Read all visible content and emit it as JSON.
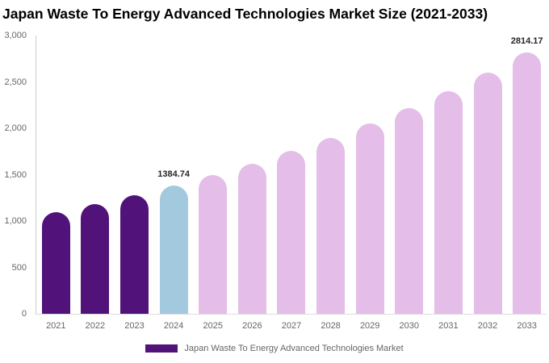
{
  "header": {
    "title": "Japan Waste To Energy Advanced Technologies Market Size (2021-2033)"
  },
  "legend": {
    "label": "Japan Waste To Energy Advanced Technologies Market",
    "swatch_color": "#511379"
  },
  "colors": {
    "historical_bar": "#511379",
    "highlight_bar": "#a3c9df",
    "forecast_bar": "#e4bee9",
    "axis_line": "#cccccc",
    "baseline": "#dddddd",
    "tick_text": "#666666",
    "value_label_text": "#262626",
    "title_text": "#000000",
    "background": "#ffffff"
  },
  "chart_data": {
    "type": "bar",
    "title": "Japan Waste To Energy Advanced Technologies Market Size (2021-2033)",
    "categories": [
      "2021",
      "2022",
      "2023",
      "2024",
      "2025",
      "2026",
      "2027",
      "2028",
      "2029",
      "2030",
      "2031",
      "2032",
      "2033"
    ],
    "values": [
      1093,
      1183,
      1280,
      1384.74,
      1498,
      1621,
      1753,
      1897,
      2052,
      2221,
      2402,
      2599,
      2814.17
    ],
    "bar_colors": [
      "#511379",
      "#511379",
      "#511379",
      "#a3c9df",
      "#e4bee9",
      "#e4bee9",
      "#e4bee9",
      "#e4bee9",
      "#e4bee9",
      "#e4bee9",
      "#e4bee9",
      "#e4bee9",
      "#e4bee9"
    ],
    "data_labels": [
      {
        "category": "2024",
        "text": "1384.74"
      },
      {
        "category": "2033",
        "text": "2814.17"
      }
    ],
    "xlabel": "",
    "ylabel": "",
    "ylim": [
      0,
      3000
    ],
    "ytick_labels": [
      "0",
      "500",
      "1,000",
      "1,500",
      "2,000",
      "2,500",
      "3,000"
    ],
    "grid": false,
    "legend_position": "bottom"
  }
}
